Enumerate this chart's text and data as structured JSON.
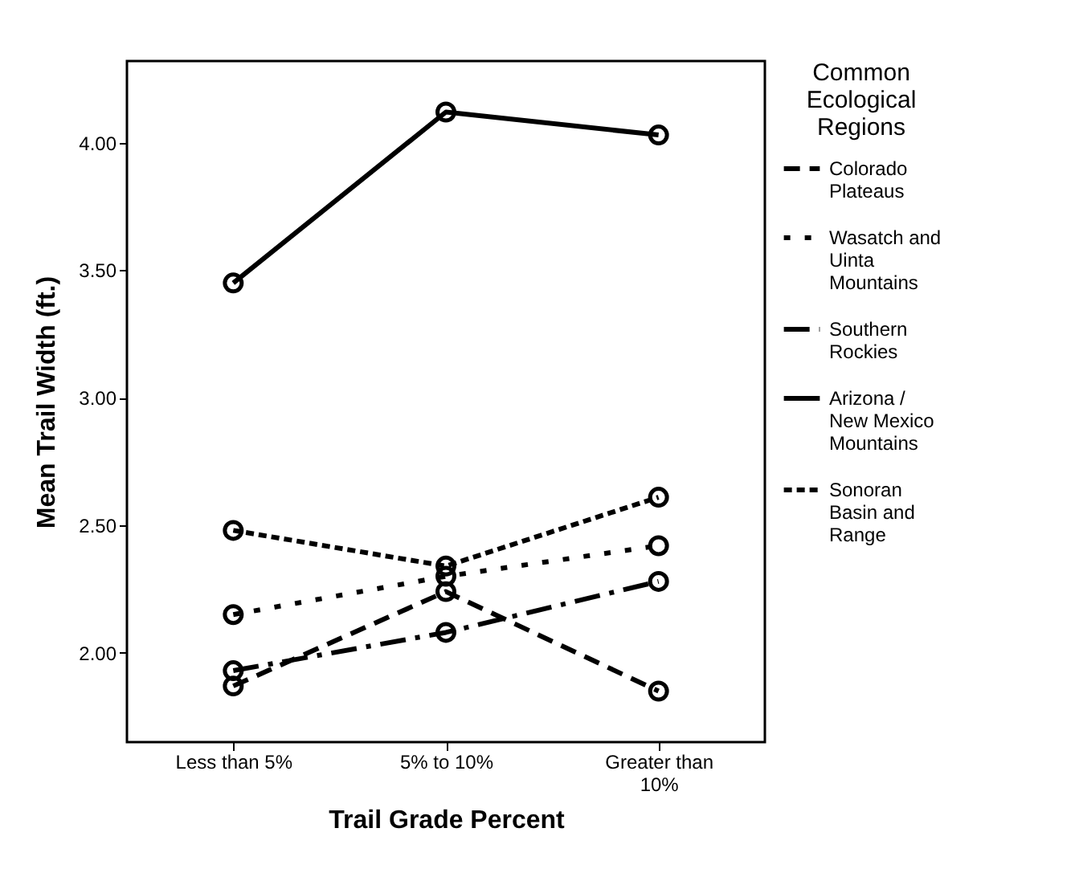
{
  "chart_data": {
    "type": "line",
    "xlabel": "Trail Grade Percent",
    "ylabel": "Mean Trail Width (ft.)",
    "legend_title": "Common Ecological Regions",
    "categories": [
      "Less than 5%",
      "5% to 10%",
      "Greater than 10%"
    ],
    "series": [
      {
        "name": "Colorado Plateaus",
        "color": "#000000",
        "line_style": "dashed",
        "values": [
          1.87,
          2.24,
          1.85
        ]
      },
      {
        "name": "Wasatch and Uinta Mountains",
        "color": "#000000",
        "line_style": "dotted",
        "values": [
          2.15,
          2.3,
          2.42
        ]
      },
      {
        "name": "Southern Rockies",
        "color": "#000000",
        "line_style": "dashdot",
        "values": [
          1.93,
          2.08,
          2.28
        ]
      },
      {
        "name": "Arizona / New Mexico Mountains",
        "color": "#000000",
        "line_style": "solid",
        "values": [
          3.45,
          4.12,
          4.03
        ]
      },
      {
        "name": "Sonoran Basin and Range",
        "color": "#000000",
        "line_style": "short-dashed",
        "values": [
          2.48,
          2.34,
          2.61
        ]
      }
    ],
    "ylim": [
      1.65,
      4.32
    ],
    "yticks": [
      {
        "value": 2,
        "label": "2.00"
      },
      {
        "value": 2.5,
        "label": "2.50"
      },
      {
        "value": 3,
        "label": "3.00"
      },
      {
        "value": 3.5,
        "label": "3.50"
      },
      {
        "value": 4,
        "label": "4.00"
      }
    ],
    "grid": false,
    "legend": "right",
    "marker": "circle"
  }
}
